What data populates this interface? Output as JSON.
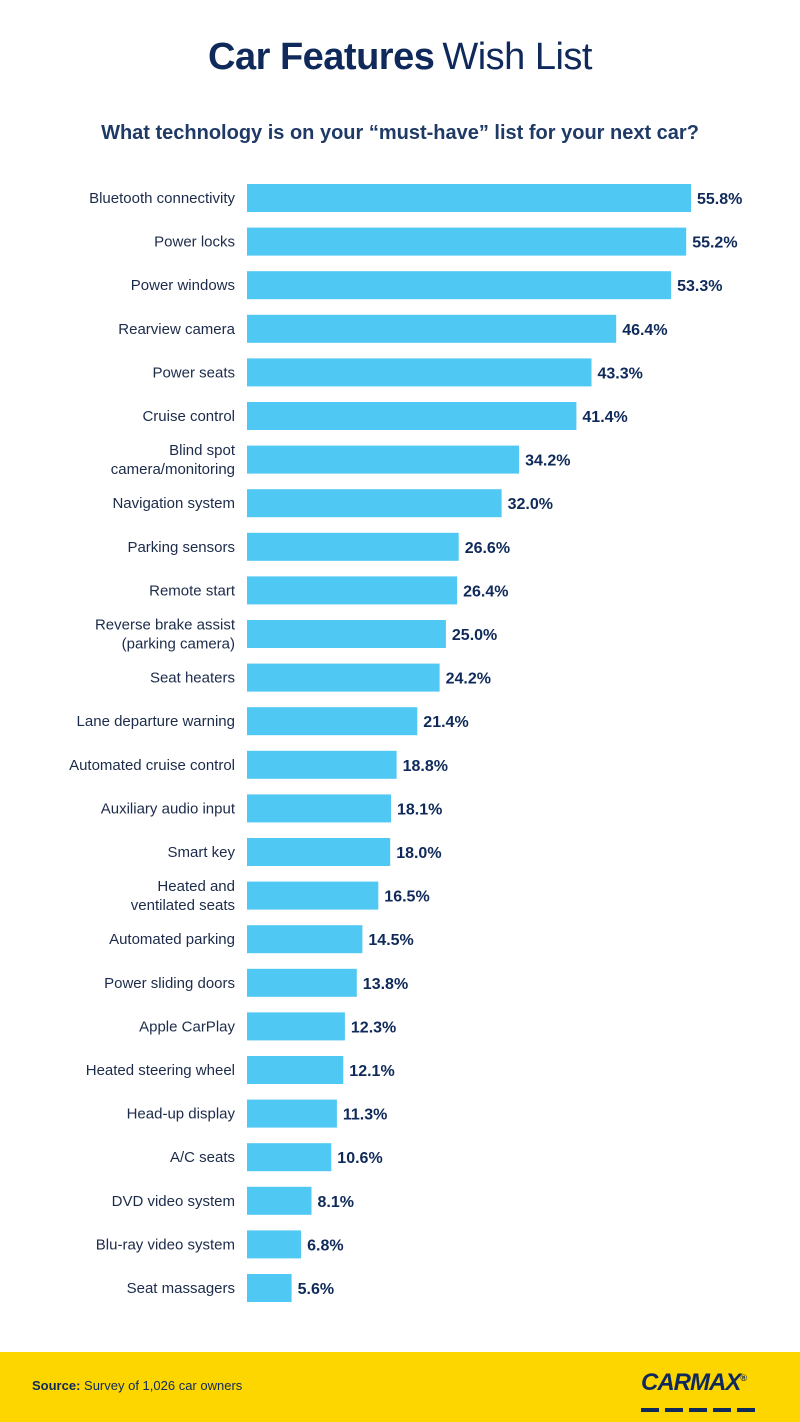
{
  "header": {
    "title_bold": "Car Features",
    "title_light": "Wish List",
    "subtitle": "What technology is on your “must-have” list for your next car?"
  },
  "chart_data": {
    "type": "bar",
    "orientation": "horizontal",
    "title": "What technology is on your “must-have” list for your next car?",
    "xlabel": "",
    "ylabel": "",
    "unit": "%",
    "xlim": [
      0,
      55.8
    ],
    "grid": false,
    "bar_color": "#4fc8f4",
    "label_color": "#0f2a5a",
    "categories": [
      [
        "Bluetooth connectivity"
      ],
      [
        "Power locks"
      ],
      [
        "Power windows"
      ],
      [
        "Rearview camera"
      ],
      [
        "Power seats"
      ],
      [
        "Cruise control"
      ],
      [
        "Blind spot",
        "camera/monitoring"
      ],
      [
        "Navigation system"
      ],
      [
        "Parking sensors"
      ],
      [
        "Remote start"
      ],
      [
        "Reverse brake assist",
        "(parking camera)"
      ],
      [
        "Seat heaters"
      ],
      [
        "Lane departure warning"
      ],
      [
        "Automated cruise control"
      ],
      [
        "Auxiliary audio input"
      ],
      [
        "Smart key"
      ],
      [
        "Heated and",
        "ventilated seats"
      ],
      [
        "Automated parking"
      ],
      [
        "Power sliding doors"
      ],
      [
        "Apple CarPlay"
      ],
      [
        "Heated steering wheel"
      ],
      [
        "Head-up display"
      ],
      [
        "A/C seats"
      ],
      [
        "DVD video system"
      ],
      [
        "Blu-ray video system"
      ],
      [
        "Seat massagers"
      ]
    ],
    "values": [
      55.8,
      55.2,
      53.3,
      46.4,
      43.3,
      41.4,
      34.2,
      32.0,
      26.6,
      26.4,
      25.0,
      24.2,
      21.4,
      18.8,
      18.1,
      18.0,
      16.5,
      14.5,
      13.8,
      12.3,
      12.1,
      11.3,
      10.6,
      8.1,
      6.8,
      5.6
    ],
    "value_labels": [
      "55.8%",
      "55.2%",
      "53.3%",
      "46.4%",
      "43.3%",
      "41.4%",
      "34.2%",
      "32.0%",
      "26.6%",
      "26.4%",
      "25.0%",
      "24.2%",
      "21.4%",
      "18.8%",
      "18.1%",
      "18.0%",
      "16.5%",
      "14.5%",
      "13.8%",
      "12.3%",
      "12.1%",
      "11.3%",
      "10.6%",
      "8.1%",
      "6.8%",
      "5.6%"
    ]
  },
  "footer": {
    "source_label": "Source:",
    "source_text": "Survey of 1,026 car owners",
    "logo_text": "CARMAX",
    "logo_mark": "®",
    "background": "#fdd600"
  }
}
